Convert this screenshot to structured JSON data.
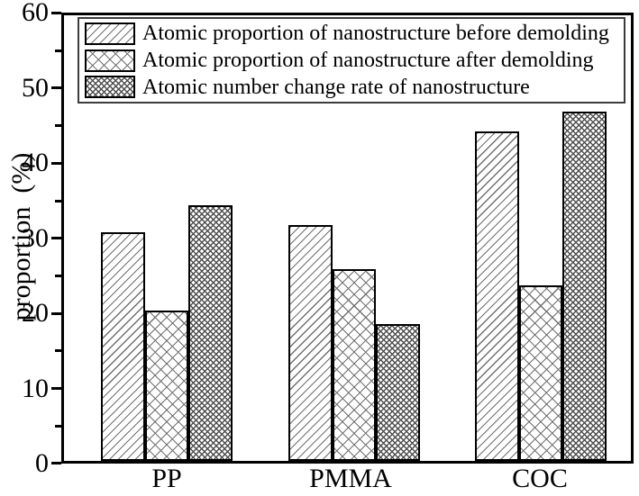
{
  "chart_data": {
    "type": "bar",
    "title": "",
    "xlabel": "",
    "ylabel": "proportion  (%)",
    "ylim": [
      0,
      60
    ],
    "yticks": [
      0,
      10,
      20,
      30,
      40,
      50,
      60
    ],
    "ytick_labels": [
      "0",
      "10",
      "20",
      "30",
      "40",
      "50",
      "60"
    ],
    "minor_yticks": [
      5,
      15,
      25,
      35,
      45,
      55
    ],
    "grid": false,
    "legend_position": "top-inside",
    "categories": [
      "PP",
      "PMMA",
      "COC"
    ],
    "series": [
      {
        "name": "Atomic proportion of nanostructure before demolding",
        "pattern": "diagonal-hatch",
        "values": [
          30.8,
          31.7,
          44.4
        ]
      },
      {
        "name": "Atomic proportion of nanostructure after demolding",
        "pattern": "cross-hatch",
        "values": [
          20.2,
          25.8,
          23.6
        ]
      },
      {
        "name": "Atomic number change rate of nanostructure",
        "pattern": "dense-cross-hatch",
        "values": [
          34.4,
          18.4,
          47.0
        ]
      }
    ],
    "colors": {
      "axis": "#000000",
      "background": "#ffffff",
      "hatch_line": "#6f6f6f",
      "bar_outline": "#000000"
    }
  }
}
